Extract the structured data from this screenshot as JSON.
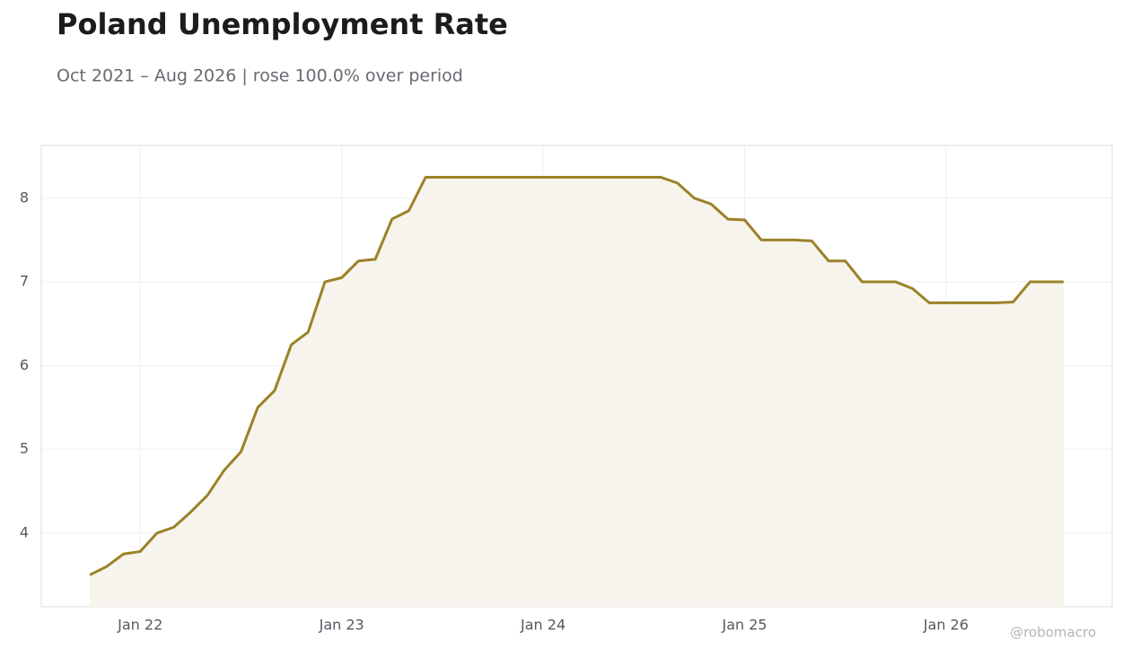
{
  "chart_data": {
    "type": "line",
    "title": "Poland Unemployment Rate",
    "subtitle": "Oct 2021 – Aug 2026 | rose 100.0% over period",
    "source": "@robomacro",
    "x": [
      "2021-10",
      "2021-11",
      "2021-12",
      "2022-01",
      "2022-02",
      "2022-03",
      "2022-04",
      "2022-05",
      "2022-06",
      "2022-07",
      "2022-08",
      "2022-09",
      "2022-10",
      "2022-11",
      "2022-12",
      "2023-01",
      "2023-02",
      "2023-03",
      "2023-04",
      "2023-05",
      "2023-06",
      "2023-07",
      "2023-08",
      "2023-09",
      "2023-10",
      "2023-11",
      "2023-12",
      "2024-01",
      "2024-02",
      "2024-03",
      "2024-04",
      "2024-05",
      "2024-06",
      "2024-07",
      "2024-08",
      "2024-09",
      "2024-10",
      "2024-11",
      "2024-12",
      "2025-01",
      "2025-02",
      "2025-03",
      "2025-04",
      "2025-05",
      "2025-06",
      "2025-07",
      "2025-08",
      "2025-09",
      "2025-10",
      "2025-11",
      "2025-12",
      "2026-01",
      "2026-02",
      "2026-03",
      "2026-04",
      "2026-05",
      "2026-06",
      "2026-07",
      "2026-08"
    ],
    "series": [
      {
        "name": "Unemployment rate",
        "color": "#9b8228",
        "fill": "#f7f4ed",
        "values": [
          3.5,
          3.6,
          3.75,
          3.78,
          4.0,
          4.07,
          4.25,
          4.45,
          4.75,
          4.97,
          5.5,
          5.7,
          6.25,
          6.4,
          7.0,
          7.05,
          7.25,
          7.27,
          7.75,
          7.85,
          8.25,
          8.25,
          8.25,
          8.25,
          8.25,
          8.25,
          8.25,
          8.25,
          8.25,
          8.25,
          8.25,
          8.25,
          8.25,
          8.25,
          8.25,
          8.18,
          8.0,
          7.93,
          7.75,
          7.74,
          7.5,
          7.5,
          7.5,
          7.49,
          7.25,
          7.25,
          7.0,
          7.0,
          7.0,
          6.92,
          6.75,
          6.75,
          6.75,
          6.75,
          6.75,
          6.76,
          7.0,
          7.0,
          7.0
        ]
      }
    ],
    "xlim": [
      "2021-07",
      "2026-11"
    ],
    "xticks": [
      {
        "value": "2022-01",
        "label": "Jan 22"
      },
      {
        "value": "2023-01",
        "label": "Jan 23"
      },
      {
        "value": "2024-01",
        "label": "Jan 24"
      },
      {
        "value": "2025-01",
        "label": "Jan 25"
      },
      {
        "value": "2026-01",
        "label": "Jan 26"
      }
    ],
    "ylim": [
      3.12,
      8.63
    ],
    "yticks": [
      4,
      5,
      6,
      7,
      8
    ],
    "grid": true
  }
}
